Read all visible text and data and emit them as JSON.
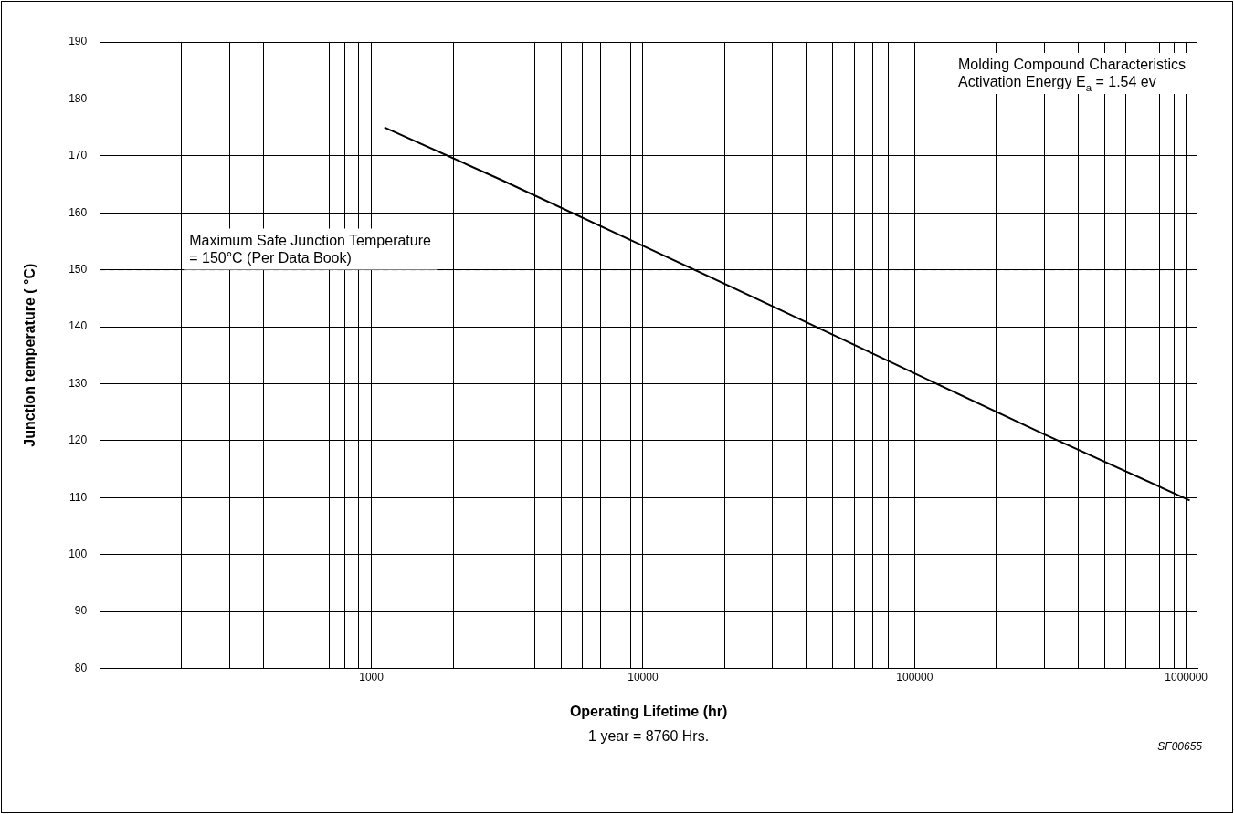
{
  "chart_data": {
    "type": "line",
    "xlabel": "Operating Lifetime (hr)",
    "ylabel": "Junction temperature ( °C)",
    "log": "x",
    "grid": true,
    "legend": false,
    "marker": "none",
    "line_style": "solid",
    "x": [
      1116,
      3000,
      10000,
      30000,
      100000,
      300000,
      1030000
    ],
    "series": [
      {
        "color": "#000000",
        "values": [
          175,
          165.8,
          154.2,
          143.6,
          131.8,
          121.1,
          109.5
        ]
      }
    ],
    "xlim": [
      100,
      1100000
    ],
    "xticks": [
      {
        "value": 200,
        "label": null
      },
      {
        "value": 300,
        "label": null
      },
      {
        "value": 400,
        "label": null
      },
      {
        "value": 500,
        "label": null
      },
      {
        "value": 600,
        "label": null
      },
      {
        "value": 700,
        "label": null
      },
      {
        "value": 800,
        "label": null
      },
      {
        "value": 900,
        "label": null
      },
      1000,
      {
        "value": 2000,
        "label": null
      },
      {
        "value": 3000,
        "label": null
      },
      {
        "value": 4000,
        "label": null
      },
      {
        "value": 5000,
        "label": null
      },
      {
        "value": 6000,
        "label": null
      },
      {
        "value": 7000,
        "label": null
      },
      {
        "value": 8000,
        "label": null
      },
      {
        "value": 9000,
        "label": null
      },
      10000,
      {
        "value": 20000,
        "label": null
      },
      {
        "value": 30000,
        "label": null
      },
      {
        "value": 40000,
        "label": null
      },
      {
        "value": 50000,
        "label": null
      },
      {
        "value": 60000,
        "label": null
      },
      {
        "value": 70000,
        "label": null
      },
      {
        "value": 80000,
        "label": null
      },
      {
        "value": 90000,
        "label": null
      },
      100000,
      {
        "value": 200000,
        "label": null
      },
      {
        "value": 300000,
        "label": null
      },
      {
        "value": 400000,
        "label": null
      },
      {
        "value": 500000,
        "label": null
      },
      {
        "value": 600000,
        "label": null
      },
      {
        "value": 700000,
        "label": null
      },
      {
        "value": 800000,
        "label": null
      },
      {
        "value": 900000,
        "label": null
      },
      1000000
    ],
    "ylim": [
      80,
      190
    ],
    "yticks": [
      80,
      90,
      100,
      110,
      120,
      130,
      140,
      150,
      160,
      170,
      180,
      190
    ],
    "ref_lines": [
      {
        "axis": "y",
        "value": 150,
        "label": "Maximum Safe Junction Temperature\n= 150°C (Per Data Book)",
        "color": "#000000",
        "line_style": "dashed"
      }
    ],
    "annotations": [
      "Molding Compound Characteristics\nActivation Energy E$_{a}$ = 1.54 ev",
      "1 year = 8760 Hrs.",
      "SF00655"
    ]
  }
}
